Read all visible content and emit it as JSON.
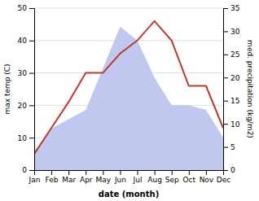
{
  "chart_data": {
    "type": "line",
    "xlabel": "date (month)",
    "ylabel": "max temp (C)",
    "y2label": "med. precipitation (kg/m2)",
    "categories": [
      "Jan",
      "Feb",
      "Mar",
      "Apr",
      "May",
      "Jun",
      "Jul",
      "Aug",
      "Sep",
      "Oct",
      "Nov",
      "Dec"
    ],
    "series": [
      {
        "type": "area",
        "axis": "y2",
        "color": "#c0c8f0",
        "values": [
          4,
          9,
          11,
          13,
          22,
          31,
          28,
          20,
          14,
          14,
          13,
          7
        ]
      },
      {
        "type": "line",
        "color": "#c0392b",
        "values": [
          5,
          13,
          21,
          30,
          30,
          36,
          40,
          46,
          40,
          26,
          26,
          13
        ]
      }
    ],
    "ylim": [
      0,
      50
    ],
    "yticks": [
      0,
      10,
      20,
      30,
      40,
      50
    ],
    "y2lim": [
      0,
      35
    ],
    "y2ticks": [
      0,
      5,
      10,
      15,
      20,
      25,
      30,
      35
    ],
    "grid": true
  }
}
